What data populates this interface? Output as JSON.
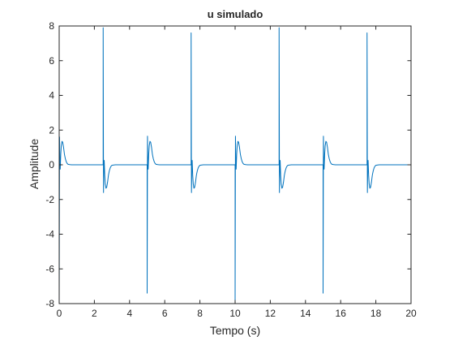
{
  "chart_data": {
    "type": "line",
    "title": "u simulado",
    "xlabel": "Tempo (s)",
    "ylabel": "Amplitude",
    "xlim": [
      0,
      20
    ],
    "ylim": [
      -8,
      8
    ],
    "xticks": [
      0,
      2,
      4,
      6,
      8,
      10,
      12,
      14,
      16,
      18,
      20
    ],
    "yticks": [
      -8,
      -6,
      -4,
      -2,
      0,
      2,
      4,
      6,
      8
    ],
    "grid": false,
    "legend": "none",
    "series": [
      {
        "color": "#0072BD",
        "x": [
          0,
          0.02,
          0.04,
          0.06,
          0.09,
          0.12,
          0.16,
          0.2,
          0.25,
          0.3,
          0.35,
          0.4,
          0.45,
          0.5,
          0.6,
          0.7,
          0.8,
          1.0,
          1.5,
          2.5,
          2.5,
          2.52,
          2.54,
          2.56,
          2.59,
          2.62,
          2.66,
          2.7,
          2.75,
          2.8,
          2.85,
          2.9,
          2.95,
          3.0,
          3.1,
          3.2,
          3.3,
          3.5,
          4.0,
          5.0,
          5.0,
          5.02,
          5.04,
          5.06,
          5.09,
          5.12,
          5.16,
          5.2,
          5.25,
          5.3,
          5.35,
          5.4,
          5.45,
          5.5,
          5.6,
          5.7,
          5.8,
          6.0,
          6.5,
          7.5,
          7.5,
          7.52,
          7.54,
          7.56,
          7.59,
          7.62,
          7.66,
          7.7,
          7.75,
          7.8,
          7.85,
          7.9,
          7.95,
          8.0,
          8.1,
          8.2,
          8.3,
          8.5,
          9.0,
          10.0,
          10.0,
          10.02,
          10.04,
          10.06,
          10.09,
          10.12,
          10.16,
          10.2,
          10.25,
          10.3,
          10.35,
          10.4,
          10.45,
          10.5,
          10.6,
          10.7,
          10.8,
          11.0,
          11.5,
          12.5,
          12.5,
          12.52,
          12.54,
          12.56,
          12.59,
          12.62,
          12.66,
          12.7,
          12.75,
          12.8,
          12.85,
          12.9,
          12.95,
          13.0,
          13.1,
          13.2,
          13.3,
          13.5,
          14.0,
          15.0,
          15.0,
          15.02,
          15.04,
          15.06,
          15.09,
          15.12,
          15.16,
          15.2,
          15.25,
          15.3,
          15.35,
          15.4,
          15.45,
          15.5,
          15.6,
          15.7,
          15.8,
          16.0,
          16.5,
          17.5,
          17.5,
          17.52,
          17.54,
          17.56,
          17.59,
          17.62,
          17.66,
          17.7,
          17.75,
          17.8,
          17.85,
          17.9,
          17.95,
          18.0,
          18.1,
          18.2,
          18.3,
          18.5,
          19.0,
          20.0
        ],
        "y": [
          -8,
          1.6,
          0.2,
          -0.25,
          0.6,
          1.1,
          1.35,
          1.3,
          1.0,
          0.6,
          0.35,
          0.18,
          0.08,
          0.03,
          0.01,
          0,
          0,
          0,
          0,
          0,
          7.9,
          -1.6,
          -0.2,
          0.25,
          -0.6,
          -1.1,
          -1.35,
          -1.3,
          -1.0,
          -0.6,
          -0.35,
          -0.18,
          -0.08,
          -0.03,
          -0.01,
          0,
          0,
          0,
          0,
          0,
          -7.4,
          1.65,
          0.2,
          -0.25,
          0.6,
          1.1,
          1.35,
          1.3,
          1.0,
          0.6,
          0.35,
          0.18,
          0.08,
          0.03,
          0.01,
          0,
          0,
          0,
          0,
          0,
          7.6,
          -1.6,
          -0.2,
          0.25,
          -0.6,
          -1.1,
          -1.35,
          -1.3,
          -1.0,
          -0.6,
          -0.35,
          -0.18,
          -0.08,
          -0.03,
          -0.01,
          0,
          0,
          0,
          0,
          0,
          -7.8,
          1.65,
          0.2,
          -0.25,
          0.6,
          1.1,
          1.35,
          1.3,
          1.0,
          0.6,
          0.35,
          0.18,
          0.08,
          0.03,
          0.01,
          0,
          0,
          0,
          0,
          0,
          7.9,
          -1.6,
          -0.2,
          0.25,
          -0.6,
          -1.1,
          -1.35,
          -1.3,
          -1.0,
          -0.6,
          -0.35,
          -0.18,
          -0.08,
          -0.03,
          -0.01,
          0,
          0,
          0,
          0,
          0,
          -7.4,
          1.65,
          0.2,
          -0.25,
          0.6,
          1.1,
          1.35,
          1.3,
          1.0,
          0.6,
          0.35,
          0.18,
          0.08,
          0.03,
          0.01,
          0,
          0,
          0,
          0,
          0,
          7.6,
          -1.6,
          -0.2,
          0.25,
          -0.6,
          -1.1,
          -1.35,
          -1.3,
          -1.0,
          -0.6,
          -0.35,
          -0.18,
          -0.08,
          -0.03,
          -0.01,
          0,
          0,
          0,
          0,
          0
        ]
      }
    ]
  }
}
